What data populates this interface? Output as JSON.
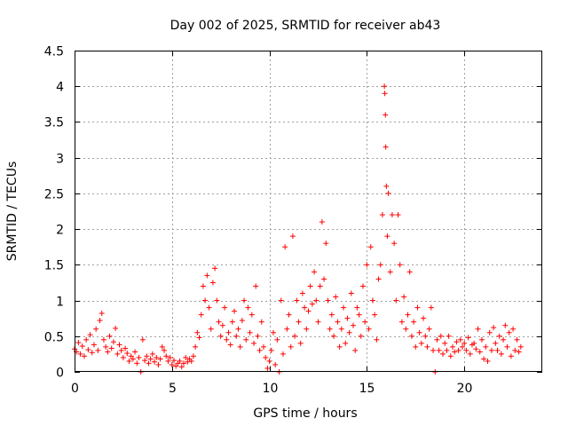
{
  "chart_data": {
    "type": "scatter",
    "title": "Day 002 of 2025, SRMTID for receiver ab43",
    "xlabel": "GPS time / hours",
    "ylabel": "SRMTID / TECUs",
    "xlim": [
      0,
      24
    ],
    "ylim": [
      0,
      4.5
    ],
    "xticks": [
      0,
      5,
      10,
      15,
      20
    ],
    "xtick_labels": [
      "0",
      "5",
      "10",
      "15",
      "20"
    ],
    "yticks": [
      0,
      0.5,
      1,
      1.5,
      2,
      2.5,
      3,
      3.5,
      4,
      4.5
    ],
    "ytick_labels": [
      "0",
      "0.5",
      "1",
      "1.5",
      "2",
      "2.5",
      "3",
      "3.5",
      "4",
      "4.5"
    ],
    "grid": true,
    "marker": "+",
    "series_color": "#ff0000",
    "series": [
      {
        "name": "SRMTID",
        "points": [
          [
            0.0,
            0.32
          ],
          [
            0.1,
            0.28
          ],
          [
            0.2,
            0.41
          ],
          [
            0.3,
            0.25
          ],
          [
            0.4,
            0.36
          ],
          [
            0.5,
            0.22
          ],
          [
            0.6,
            0.45
          ],
          [
            0.7,
            0.31
          ],
          [
            0.8,
            0.52
          ],
          [
            0.9,
            0.27
          ],
          [
            1.0,
            0.38
          ],
          [
            1.1,
            0.6
          ],
          [
            1.2,
            0.3
          ],
          [
            1.3,
            0.72
          ],
          [
            1.4,
            0.82
          ],
          [
            1.5,
            0.45
          ],
          [
            1.6,
            0.35
          ],
          [
            1.7,
            0.28
          ],
          [
            1.8,
            0.5
          ],
          [
            1.9,
            0.33
          ],
          [
            2.0,
            0.42
          ],
          [
            2.1,
            0.61
          ],
          [
            2.2,
            0.25
          ],
          [
            2.3,
            0.38
          ],
          [
            2.4,
            0.3
          ],
          [
            2.5,
            0.2
          ],
          [
            2.6,
            0.33
          ],
          [
            2.7,
            0.26
          ],
          [
            2.8,
            0.15
          ],
          [
            2.9,
            0.22
          ],
          [
            3.0,
            0.18
          ],
          [
            3.1,
            0.28
          ],
          [
            3.2,
            0.12
          ],
          [
            3.3,
            0.2
          ],
          [
            3.4,
            0.0
          ],
          [
            3.5,
            0.45
          ],
          [
            3.6,
            0.16
          ],
          [
            3.7,
            0.22
          ],
          [
            3.8,
            0.12
          ],
          [
            3.9,
            0.18
          ],
          [
            4.0,
            0.25
          ],
          [
            4.1,
            0.14
          ],
          [
            4.2,
            0.2
          ],
          [
            4.3,
            0.1
          ],
          [
            4.4,
            0.18
          ],
          [
            4.5,
            0.35
          ],
          [
            4.6,
            0.3
          ],
          [
            4.7,
            0.22
          ],
          [
            4.8,
            0.15
          ],
          [
            4.9,
            0.2
          ],
          [
            5.0,
            0.1
          ],
          [
            5.1,
            0.16
          ],
          [
            5.2,
            0.08
          ],
          [
            5.3,
            0.12
          ],
          [
            5.4,
            0.15
          ],
          [
            5.5,
            0.07
          ],
          [
            5.6,
            0.12
          ],
          [
            5.7,
            0.2
          ],
          [
            5.8,
            0.14
          ],
          [
            5.9,
            0.18
          ],
          [
            6.0,
            0.15
          ],
          [
            6.1,
            0.22
          ],
          [
            6.2,
            0.35
          ],
          [
            6.3,
            0.55
          ],
          [
            6.4,
            0.48
          ],
          [
            6.5,
            0.8
          ],
          [
            6.6,
            1.2
          ],
          [
            6.7,
            1.0
          ],
          [
            6.8,
            1.35
          ],
          [
            6.9,
            0.9
          ],
          [
            7.0,
            0.6
          ],
          [
            7.1,
            1.25
          ],
          [
            7.2,
            1.45
          ],
          [
            7.3,
            1.0
          ],
          [
            7.4,
            0.7
          ],
          [
            7.5,
            0.5
          ],
          [
            7.6,
            0.65
          ],
          [
            7.7,
            0.9
          ],
          [
            7.8,
            0.45
          ],
          [
            7.9,
            0.55
          ],
          [
            8.0,
            0.38
          ],
          [
            8.1,
            0.7
          ],
          [
            8.2,
            0.85
          ],
          [
            8.3,
            0.5
          ],
          [
            8.4,
            0.6
          ],
          [
            8.5,
            0.35
          ],
          [
            8.6,
            0.72
          ],
          [
            8.7,
            1.0
          ],
          [
            8.8,
            0.45
          ],
          [
            8.9,
            0.9
          ],
          [
            9.0,
            0.55
          ],
          [
            9.1,
            0.8
          ],
          [
            9.2,
            0.4
          ],
          [
            9.3,
            1.2
          ],
          [
            9.4,
            0.5
          ],
          [
            9.5,
            0.3
          ],
          [
            9.6,
            0.7
          ],
          [
            9.7,
            0.35
          ],
          [
            9.8,
            0.2
          ],
          [
            9.9,
            0.05
          ],
          [
            10.0,
            0.15
          ],
          [
            10.1,
            0.3
          ],
          [
            10.2,
            0.55
          ],
          [
            10.3,
            0.1
          ],
          [
            10.4,
            0.45
          ],
          [
            10.5,
            0.0
          ],
          [
            10.6,
            1.0
          ],
          [
            10.7,
            0.25
          ],
          [
            10.8,
            1.75
          ],
          [
            10.9,
            0.6
          ],
          [
            11.0,
            0.8
          ],
          [
            11.1,
            0.35
          ],
          [
            11.2,
            1.9
          ],
          [
            11.3,
            0.5
          ],
          [
            11.4,
            1.0
          ],
          [
            11.5,
            0.7
          ],
          [
            11.6,
            0.4
          ],
          [
            11.7,
            1.1
          ],
          [
            11.8,
            0.9
          ],
          [
            11.9,
            0.6
          ],
          [
            12.0,
            0.85
          ],
          [
            12.1,
            1.2
          ],
          [
            12.2,
            0.95
          ],
          [
            12.3,
            1.4
          ],
          [
            12.4,
            1.0
          ],
          [
            12.5,
            0.7
          ],
          [
            12.6,
            1.2
          ],
          [
            12.7,
            2.1
          ],
          [
            12.8,
            1.3
          ],
          [
            12.9,
            1.8
          ],
          [
            13.0,
            1.0
          ],
          [
            13.1,
            0.6
          ],
          [
            13.2,
            0.8
          ],
          [
            13.3,
            0.5
          ],
          [
            13.4,
            1.05
          ],
          [
            13.5,
            0.7
          ],
          [
            13.6,
            0.35
          ],
          [
            13.7,
            0.6
          ],
          [
            13.8,
            0.9
          ],
          [
            13.9,
            0.4
          ],
          [
            14.0,
            0.75
          ],
          [
            14.1,
            0.55
          ],
          [
            14.2,
            1.1
          ],
          [
            14.3,
            0.65
          ],
          [
            14.4,
            0.3
          ],
          [
            14.5,
            0.9
          ],
          [
            14.6,
            0.8
          ],
          [
            14.7,
            0.5
          ],
          [
            14.8,
            1.2
          ],
          [
            14.9,
            0.7
          ],
          [
            15.0,
            1.5
          ],
          [
            15.1,
            0.6
          ],
          [
            15.2,
            1.75
          ],
          [
            15.3,
            1.0
          ],
          [
            15.4,
            0.8
          ],
          [
            15.5,
            0.45
          ],
          [
            15.6,
            1.3
          ],
          [
            15.7,
            1.5
          ],
          [
            15.8,
            2.2
          ],
          [
            15.9,
            4.0
          ],
          [
            15.92,
            3.9
          ],
          [
            15.95,
            3.6
          ],
          [
            15.97,
            3.15
          ],
          [
            16.0,
            2.6
          ],
          [
            16.05,
            1.9
          ],
          [
            16.1,
            2.5
          ],
          [
            16.2,
            1.4
          ],
          [
            16.3,
            2.2
          ],
          [
            16.4,
            1.8
          ],
          [
            16.5,
            1.0
          ],
          [
            16.6,
            2.2
          ],
          [
            16.7,
            1.5
          ],
          [
            16.8,
            0.7
          ],
          [
            16.9,
            1.05
          ],
          [
            17.0,
            0.6
          ],
          [
            17.1,
            0.8
          ],
          [
            17.2,
            1.4
          ],
          [
            17.3,
            0.5
          ],
          [
            17.4,
            0.7
          ],
          [
            17.5,
            0.35
          ],
          [
            17.6,
            0.9
          ],
          [
            17.7,
            0.55
          ],
          [
            17.8,
            0.4
          ],
          [
            17.9,
            0.75
          ],
          [
            18.0,
            0.5
          ],
          [
            18.1,
            0.35
          ],
          [
            18.2,
            0.6
          ],
          [
            18.3,
            0.9
          ],
          [
            18.4,
            0.3
          ],
          [
            18.5,
            0.0
          ],
          [
            18.6,
            0.45
          ],
          [
            18.7,
            0.3
          ],
          [
            18.8,
            0.5
          ],
          [
            18.9,
            0.25
          ],
          [
            19.0,
            0.4
          ],
          [
            19.1,
            0.3
          ],
          [
            19.2,
            0.5
          ],
          [
            19.3,
            0.22
          ],
          [
            19.4,
            0.35
          ],
          [
            19.5,
            0.28
          ],
          [
            19.6,
            0.42
          ],
          [
            19.7,
            0.3
          ],
          [
            19.8,
            0.45
          ],
          [
            19.9,
            0.35
          ],
          [
            20.0,
            0.4
          ],
          [
            20.1,
            0.3
          ],
          [
            20.2,
            0.48
          ],
          [
            20.3,
            0.25
          ],
          [
            20.4,
            0.38
          ],
          [
            20.5,
            0.4
          ],
          [
            20.6,
            0.32
          ],
          [
            20.7,
            0.6
          ],
          [
            20.8,
            0.28
          ],
          [
            20.9,
            0.45
          ],
          [
            21.0,
            0.18
          ],
          [
            21.1,
            0.35
          ],
          [
            21.2,
            0.15
          ],
          [
            21.3,
            0.55
          ],
          [
            21.4,
            0.3
          ],
          [
            21.5,
            0.62
          ],
          [
            21.6,
            0.4
          ],
          [
            21.7,
            0.3
          ],
          [
            21.8,
            0.5
          ],
          [
            21.9,
            0.25
          ],
          [
            22.0,
            0.45
          ],
          [
            22.1,
            0.65
          ],
          [
            22.2,
            0.35
          ],
          [
            22.3,
            0.55
          ],
          [
            22.4,
            0.22
          ],
          [
            22.5,
            0.6
          ],
          [
            22.6,
            0.3
          ],
          [
            22.7,
            0.45
          ],
          [
            22.8,
            0.28
          ],
          [
            22.9,
            0.35
          ]
        ]
      }
    ]
  }
}
